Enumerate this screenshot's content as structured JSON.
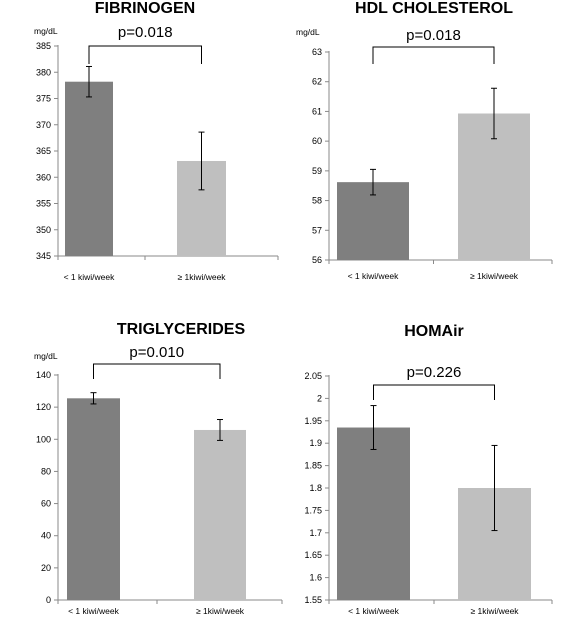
{
  "colors": {
    "bar_dark": "#7f7f7f",
    "bar_light": "#bfbfbf",
    "axis": "#8a8a8a"
  },
  "chart_data": [
    {
      "type": "bar",
      "title": "FIBRINOGEN",
      "ylabel": "mg/dL",
      "annotation": "p=0.018",
      "categories": [
        "< 1 kiwi/week",
        "≥ 1kiwi/week"
      ],
      "values": [
        378.2,
        363.1
      ],
      "errors": [
        2.9,
        5.5
      ],
      "ylim": [
        345,
        385
      ],
      "ticks": [
        345,
        350,
        355,
        360,
        365,
        370,
        375,
        380,
        385
      ],
      "tick_labels": [
        "345",
        "350",
        "355",
        "360",
        "365",
        "370",
        "375",
        "380",
        "385"
      ]
    },
    {
      "type": "bar",
      "title": "HDL CHOLESTEROL",
      "ylabel": "mg/dL",
      "annotation": "p=0.018",
      "categories": [
        "< 1 kiwi/week",
        "≥ 1kiwi/week"
      ],
      "values": [
        58.62,
        60.93
      ],
      "errors": [
        0.43,
        0.85
      ],
      "ylim": [
        56,
        63
      ],
      "ticks": [
        56,
        57,
        58,
        59,
        60,
        61,
        62,
        63
      ],
      "tick_labels": [
        "56",
        "57",
        "58",
        "59",
        "60",
        "61",
        "62",
        "63"
      ]
    },
    {
      "type": "bar",
      "title": "TRIGLYCERIDES",
      "ylabel": "mg/dL",
      "annotation": "p=0.010",
      "categories": [
        "< 1 kiwi/week",
        "≥ 1kiwi/week"
      ],
      "values": [
        125.5,
        105.8
      ],
      "errors": [
        3.5,
        6.5
      ],
      "ylim": [
        0,
        140
      ],
      "ticks": [
        0,
        20,
        40,
        60,
        80,
        100,
        120,
        140
      ],
      "tick_labels": [
        "0",
        "20",
        "40",
        "60",
        "80",
        "100",
        "120",
        "140"
      ]
    },
    {
      "type": "bar",
      "title": "HOMAir",
      "ylabel": "",
      "annotation": "p=0.226",
      "categories": [
        "< 1 kiwi/week",
        "≥ 1kiwi/week"
      ],
      "values": [
        1.935,
        1.8
      ],
      "errors": [
        0.049,
        0.095
      ],
      "ylim": [
        1.55,
        2.05
      ],
      "ticks": [
        1.55,
        1.6,
        1.65,
        1.7,
        1.75,
        1.8,
        1.85,
        1.9,
        1.95,
        2.0,
        2.05
      ],
      "tick_labels": [
        "1.55",
        "1.6",
        "1.65",
        "1.7",
        "1.75",
        "1.8",
        "1.85",
        "1.9",
        "1.95",
        "2",
        "2.05"
      ]
    }
  ]
}
